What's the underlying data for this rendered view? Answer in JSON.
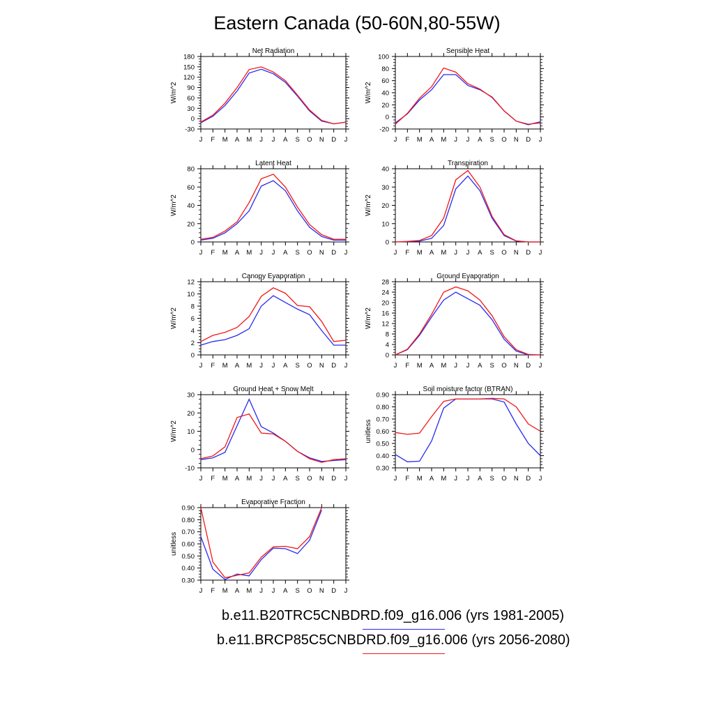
{
  "page_title": "Eastern Canada (50-60N,80-55W)",
  "colors": {
    "series1": "#2a2af0",
    "series2": "#f01818"
  },
  "legend": [
    {
      "label": "b.e11.B20TRC5CNBDRD.f09_g16.006 (yrs 1981-2005)",
      "color": "#2a2af0"
    },
    {
      "label": "b.e11.BRCP85C5CNBDRD.f09_g16.006 (yrs 2056-2080)",
      "color": "#f01818"
    }
  ],
  "chart_data": [
    {
      "type": "line",
      "title": "Net Radiation",
      "ylabel": "W/m^2",
      "categories": [
        "J",
        "F",
        "M",
        "A",
        "M",
        "J",
        "J",
        "A",
        "S",
        "O",
        "N",
        "D",
        "J"
      ],
      "ylim": [
        -30,
        180
      ],
      "yticks": [
        "180",
        "150",
        "120",
        "90",
        "60",
        "30",
        "0",
        "-30"
      ],
      "series": [
        {
          "values": [
            -12,
            7,
            38,
            80,
            132,
            143,
            130,
            105,
            65,
            22,
            -7,
            -15,
            -10
          ]
        },
        {
          "values": [
            -10,
            10,
            45,
            90,
            142,
            150,
            135,
            110,
            68,
            25,
            -5,
            -15,
            -10
          ]
        }
      ]
    },
    {
      "type": "line",
      "title": "Sensible Heat",
      "ylabel": "W/m^2",
      "categories": [
        "J",
        "F",
        "M",
        "A",
        "M",
        "J",
        "J",
        "A",
        "S",
        "O",
        "N",
        "D",
        "J"
      ],
      "ylim": [
        -20,
        100
      ],
      "yticks": [
        "100",
        "80",
        "60",
        "40",
        "20",
        "0",
        "-20"
      ],
      "series": [
        {
          "values": [
            -10,
            5,
            28,
            45,
            70,
            70,
            52,
            45,
            33,
            10,
            -7,
            -13,
            -8
          ]
        },
        {
          "values": [
            -12,
            6,
            31,
            50,
            81,
            74,
            55,
            46,
            32,
            10,
            -7,
            -12,
            -10
          ]
        }
      ]
    },
    {
      "type": "line",
      "title": "Latent Heat",
      "ylabel": "W/m^2",
      "categories": [
        "J",
        "F",
        "M",
        "A",
        "M",
        "J",
        "J",
        "A",
        "S",
        "O",
        "N",
        "D",
        "J"
      ],
      "ylim": [
        0,
        80
      ],
      "yticks": [
        "80",
        "60",
        "40",
        "20",
        "0"
      ],
      "series": [
        {
          "values": [
            2,
            4,
            10,
            20,
            34,
            61,
            67,
            56,
            34,
            16,
            6,
            2,
            2
          ]
        },
        {
          "values": [
            3,
            5,
            12,
            22,
            43,
            69,
            74,
            60,
            38,
            19,
            8,
            3,
            3
          ]
        }
      ]
    },
    {
      "type": "line",
      "title": "Transpiration",
      "ylabel": "W/m^2",
      "categories": [
        "J",
        "F",
        "M",
        "A",
        "M",
        "J",
        "J",
        "A",
        "S",
        "O",
        "N",
        "D",
        "J"
      ],
      "ylim": [
        0,
        40
      ],
      "yticks": [
        "40",
        "30",
        "20",
        "10",
        "0"
      ],
      "series": [
        {
          "values": [
            0,
            0.2,
            0.5,
            2,
            9,
            29,
            36,
            28,
            13,
            3.5,
            0.5,
            0,
            0
          ]
        },
        {
          "values": [
            0,
            0.3,
            0.8,
            3.5,
            13,
            34,
            39,
            30,
            14,
            4,
            0.6,
            0,
            0
          ]
        }
      ]
    },
    {
      "type": "line",
      "title": "Canopy Evaporation",
      "ylabel": "W/m^2",
      "categories": [
        "J",
        "F",
        "M",
        "A",
        "M",
        "J",
        "J",
        "A",
        "S",
        "O",
        "N",
        "D",
        "J"
      ],
      "ylim": [
        0,
        12
      ],
      "yticks": [
        "12",
        "10",
        "8",
        "6",
        "4",
        "2",
        "0"
      ],
      "series": [
        {
          "values": [
            1.6,
            2.2,
            2.5,
            3.2,
            4.3,
            8.0,
            9.7,
            8.6,
            7.5,
            6.6,
            4.0,
            1.6,
            1.6
          ]
        },
        {
          "values": [
            2.2,
            3.2,
            3.7,
            4.5,
            6.3,
            9.6,
            11.0,
            10.1,
            8.1,
            7.9,
            5.5,
            2.2,
            2.4
          ]
        }
      ]
    },
    {
      "type": "line",
      "title": "Ground Evaporation",
      "ylabel": "W/m^2",
      "categories": [
        "J",
        "F",
        "M",
        "A",
        "M",
        "J",
        "J",
        "A",
        "S",
        "O",
        "N",
        "D",
        "J"
      ],
      "ylim": [
        0,
        28
      ],
      "yticks": [
        "28",
        "24",
        "20",
        "16",
        "12",
        "8",
        "4",
        "0"
      ],
      "series": [
        {
          "values": [
            0,
            2,
            7.5,
            14.5,
            21,
            24,
            21.5,
            19,
            13.5,
            6,
            1.5,
            0,
            0
          ]
        },
        {
          "values": [
            0,
            2.2,
            8,
            15.5,
            24,
            26,
            24.5,
            21,
            15,
            7,
            2,
            0.2,
            0
          ]
        }
      ]
    },
    {
      "type": "line",
      "title": "Ground Heat + Snow Melt",
      "ylabel": "W/m^2",
      "categories": [
        "J",
        "F",
        "M",
        "A",
        "M",
        "J",
        "J",
        "A",
        "S",
        "O",
        "N",
        "D",
        "J"
      ],
      "ylim": [
        -10,
        30
      ],
      "yticks": [
        "30",
        "20",
        "10",
        "0",
        "-10"
      ],
      "series": [
        {
          "values": [
            -5.5,
            -4.5,
            -1.5,
            13,
            27.5,
            12.5,
            9,
            4.5,
            -1,
            -4.5,
            -6.5,
            -6,
            -5.5
          ]
        },
        {
          "values": [
            -5,
            -3.5,
            1.5,
            17.5,
            19.5,
            9,
            8.5,
            4.5,
            -1,
            -5,
            -7,
            -5.5,
            -5
          ]
        }
      ]
    },
    {
      "type": "line",
      "title": "Soil moisture factor (BTRAN)",
      "ylabel": "unitless",
      "categories": [
        "J",
        "F",
        "M",
        "A",
        "M",
        "J",
        "J",
        "A",
        "S",
        "O",
        "N",
        "D",
        "J"
      ],
      "ylim": [
        0.3,
        0.9
      ],
      "yticks": [
        "0.90",
        "0.80",
        "0.70",
        "0.60",
        "0.50",
        "0.40",
        "0.30"
      ],
      "series": [
        {
          "values": [
            0.41,
            0.35,
            0.355,
            0.52,
            0.79,
            0.865,
            0.865,
            0.865,
            0.865,
            0.84,
            0.66,
            0.5,
            0.4
          ]
        },
        {
          "values": [
            0.59,
            0.575,
            0.585,
            0.72,
            0.845,
            0.865,
            0.865,
            0.865,
            0.87,
            0.865,
            0.8,
            0.66,
            0.6
          ]
        }
      ]
    },
    {
      "type": "line",
      "title": "Evaporative Fraction",
      "ylabel": "unitless",
      "categories": [
        "J",
        "F",
        "M",
        "A",
        "M",
        "J",
        "J",
        "A",
        "S",
        "O",
        "N",
        "D",
        "J"
      ],
      "ylim": [
        0.3,
        0.9
      ],
      "yticks": [
        "0.90",
        "0.80",
        "0.70",
        "0.60",
        "0.50",
        "0.40",
        "0.30"
      ],
      "series": [
        {
          "values": [
            0.66,
            0.39,
            0.305,
            0.35,
            0.335,
            0.47,
            0.565,
            0.56,
            0.52,
            0.63,
            0.88,
            null,
            null
          ]
        },
        {
          "values": [
            0.9,
            0.45,
            0.32,
            0.34,
            0.36,
            0.49,
            0.575,
            0.58,
            0.56,
            0.66,
            0.9,
            null,
            null
          ]
        }
      ]
    }
  ]
}
